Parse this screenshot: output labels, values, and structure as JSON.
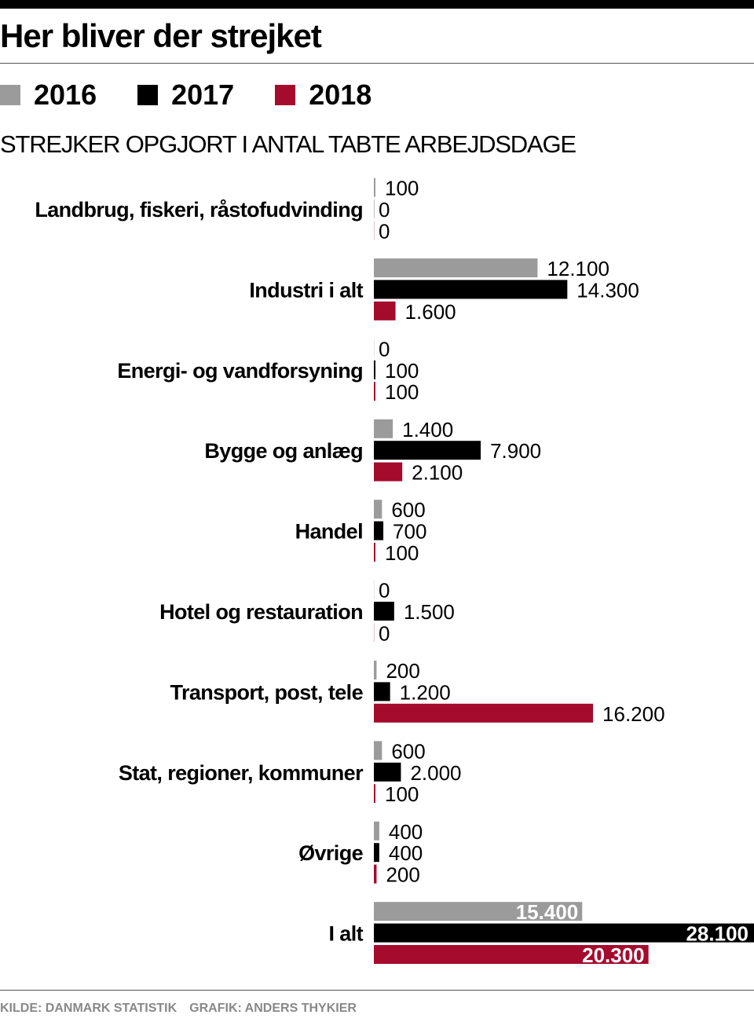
{
  "title": "Her bliver der strejket",
  "subtitle": "STREJKER OPGJORT I ANTAL TABTE ARBEJDSDAGE",
  "source": "KILDE: DANMARK STATISTIK",
  "credit": "GRAFIK: ANDERS THYKIER",
  "chart_data": {
    "type": "bar",
    "orientation": "horizontal",
    "categories": [
      "Landbrug, fiskeri, råstofudvinding",
      "Industri i alt",
      "Energi- og vandforsyning",
      "Bygge og anlæg",
      "Handel",
      "Hotel og restauration",
      "Transport, post, tele",
      "Stat, regioner, kommuner",
      "Øvrige",
      "I alt"
    ],
    "series": [
      {
        "name": "2016",
        "color": "#9b9b9b",
        "values": [
          100,
          12100,
          0,
          1400,
          600,
          0,
          200,
          600,
          400,
          15400
        ],
        "labels": [
          "100",
          "12.100",
          "0",
          "1.400",
          "600",
          "0",
          "200",
          "600",
          "400",
          "15.400"
        ]
      },
      {
        "name": "2017",
        "color": "#000000",
        "values": [
          0,
          14300,
          100,
          7900,
          700,
          1500,
          1200,
          2000,
          400,
          28100
        ],
        "labels": [
          "0",
          "14.300",
          "100",
          "7.900",
          "700",
          "1.500",
          "1.200",
          "2.000",
          "400",
          "28.100"
        ]
      },
      {
        "name": "2018",
        "color": "#a50b2d",
        "values": [
          0,
          1600,
          100,
          2100,
          100,
          0,
          16200,
          100,
          200,
          20300
        ],
        "labels": [
          "0",
          "1.600",
          "100",
          "2.100",
          "100",
          "0",
          "16.200",
          "100",
          "200",
          "20.300"
        ]
      }
    ],
    "legend_placement": "top-left",
    "grid": false,
    "xlim": [
      0,
      28100
    ]
  }
}
